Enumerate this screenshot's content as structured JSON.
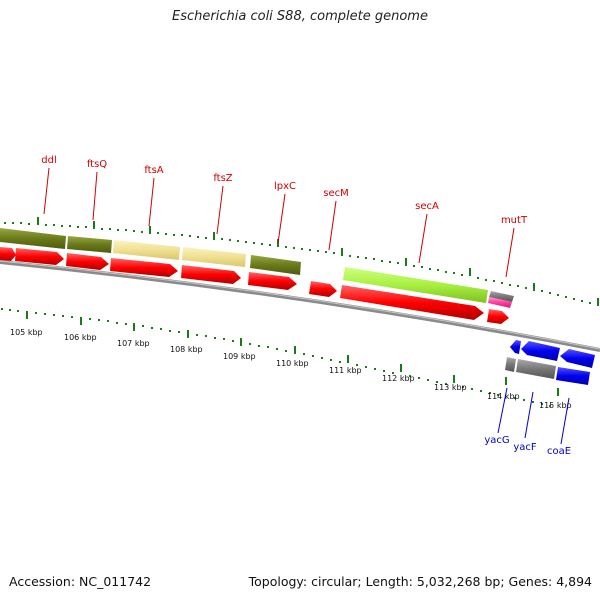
{
  "title": "Escherichia coli S88, complete genome",
  "footer": {
    "accession": "Accession: NC_011742",
    "summary": "Topology: circular; Length: 5,032,268 bp; Genes: 4,894"
  },
  "scale": {
    "ticks": [
      "105 kbp",
      "106 kbp",
      "107 kbp",
      "108 kbp",
      "109 kbp",
      "110 kbp",
      "111 kbp",
      "112 kbp",
      "113 kbp",
      "114 kbp",
      "115 kbp"
    ]
  },
  "genes": {
    "forward": [
      "ddl",
      "ftsQ",
      "ftsA",
      "ftsZ",
      "lpxC",
      "secM",
      "secA",
      "mutT"
    ],
    "reverse": [
      "yacG",
      "yacF",
      "coaE"
    ]
  },
  "colors": {
    "cds_forward": "#ff0000",
    "cds_reverse": "#0000ee",
    "label_forward": "#d00000",
    "label_reverse": "#0000cc",
    "backbone": "#888888",
    "tick": "#1a7a1a",
    "category_dark_olive": "#6b7a1a",
    "category_light_yellow": "#f0e090",
    "category_lime": "#a8f040",
    "category_gray": "#777777",
    "category_pink": "#ff40a0"
  }
}
